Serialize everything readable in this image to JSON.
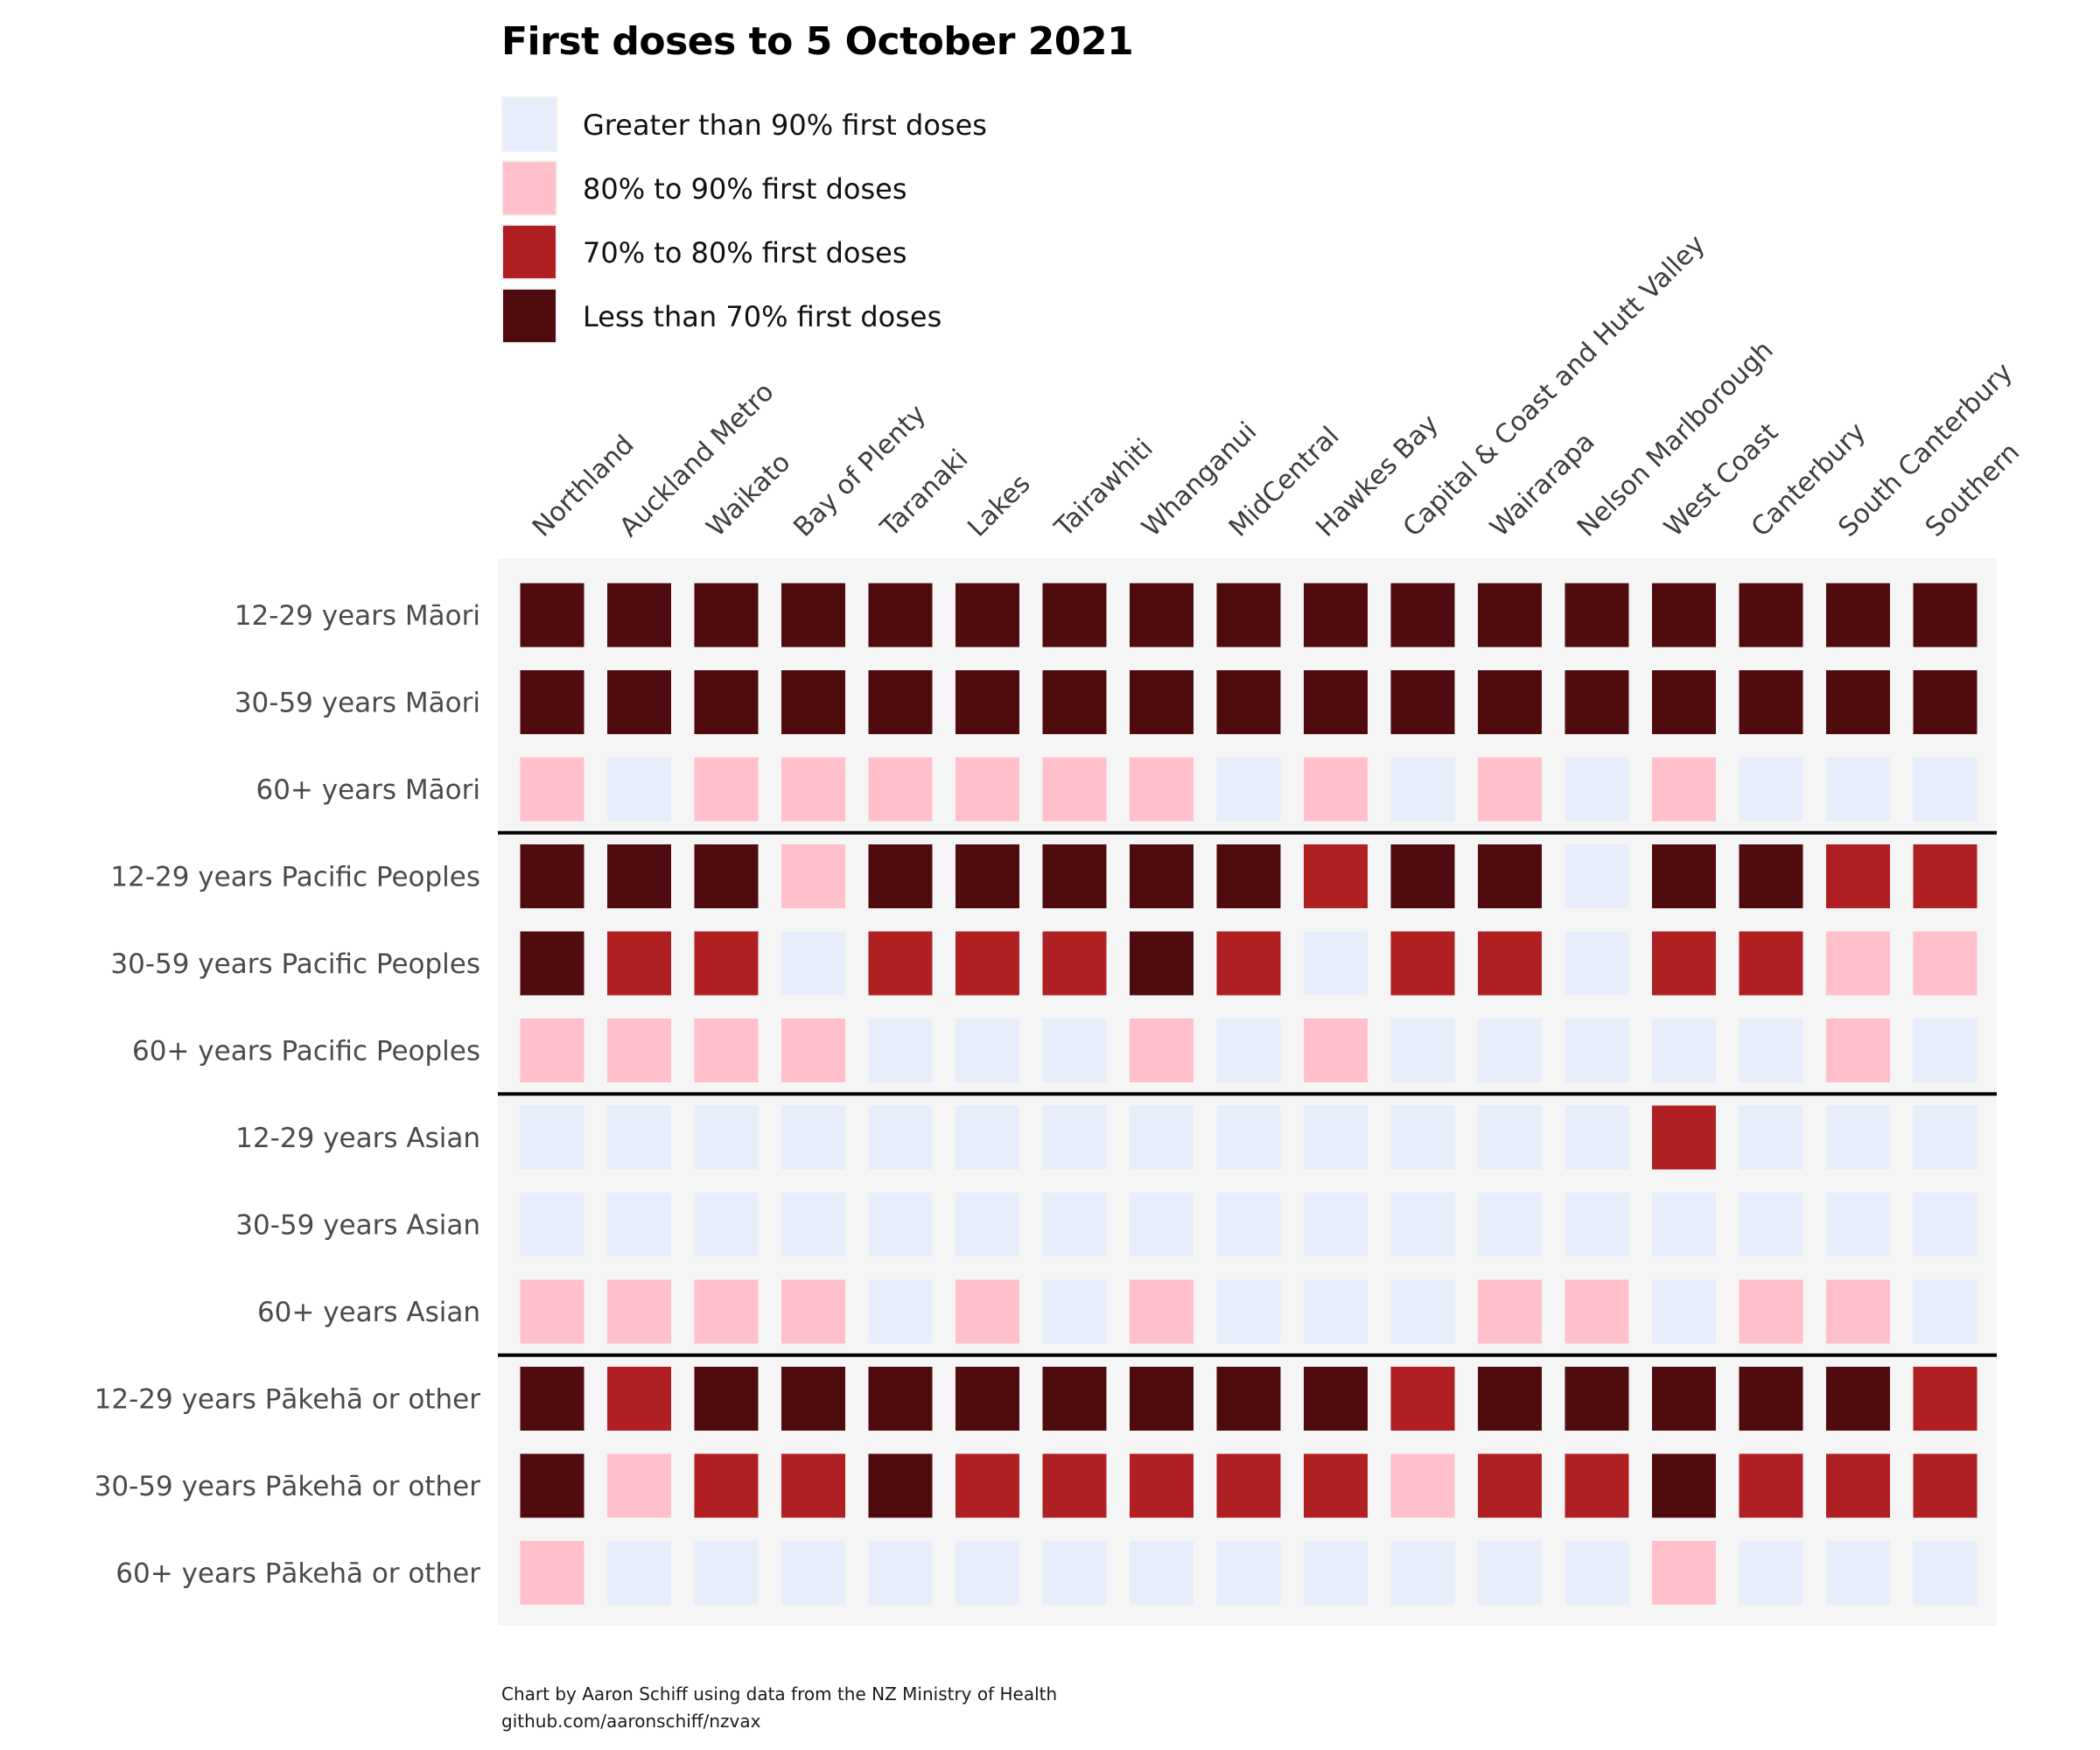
{
  "title": "First doses to 5 October 2021",
  "legend": [
    {
      "label": "Greater than 90% first doses",
      "color": "#e8edfc"
    },
    {
      "label": "80% to 90% first doses",
      "color": "#ffbfcb"
    },
    {
      "label": "70% to 80% first doses",
      "color": "#b01f22"
    },
    {
      "label": "Less than 70% first doses",
      "color": "#4f0b0d"
    }
  ],
  "caption": {
    "line1": "Chart by Aaron Schiff using data from the NZ Ministry of Health",
    "line2": "github.com/aaronschiff/nzvax"
  },
  "chart_data": {
    "type": "heatmap",
    "title": "First doses to 5 October 2021",
    "x": [
      "Northland",
      "Auckland Metro",
      "Waikato",
      "Bay of Plenty",
      "Taranaki",
      "Lakes",
      "Tairawhiti",
      "Whanganui",
      "MidCentral",
      "Hawkes Bay",
      "Capital & Coast and Hutt Valley",
      "Wairarapa",
      "Nelson Marlborough",
      "West Coast",
      "Canterbury",
      "South Canterbury",
      "Southern"
    ],
    "y": [
      "12-29 years Māori",
      "30-59 years Māori",
      "60+ years Māori",
      "12-29 years Pacific Peoples",
      "30-59 years Pacific Peoples",
      "60+ years Pacific Peoples",
      "12-29 years Asian",
      "30-59 years Asian",
      "60+ years Asian",
      "12-29 years Pākehā or other",
      "30-59 years Pākehā or other",
      "60+ years Pākehā or other"
    ],
    "categories": [
      "Greater than 90% first doses",
      "80% to 90% first doses",
      "70% to 80% first doses",
      "Less than 70% first doses"
    ],
    "values": [
      [
        3,
        3,
        3,
        3,
        3,
        3,
        3,
        3,
        3,
        3,
        3,
        3,
        3,
        3,
        3,
        3,
        3
      ],
      [
        3,
        3,
        3,
        3,
        3,
        3,
        3,
        3,
        3,
        3,
        3,
        3,
        3,
        3,
        3,
        3,
        3
      ],
      [
        1,
        0,
        1,
        1,
        1,
        1,
        1,
        1,
        0,
        1,
        0,
        1,
        0,
        1,
        0,
        0,
        0
      ],
      [
        3,
        3,
        3,
        1,
        3,
        3,
        3,
        3,
        3,
        2,
        3,
        3,
        0,
        3,
        3,
        2,
        2
      ],
      [
        3,
        2,
        2,
        0,
        2,
        2,
        2,
        3,
        2,
        0,
        2,
        2,
        0,
        2,
        2,
        1,
        1
      ],
      [
        1,
        1,
        1,
        1,
        0,
        0,
        0,
        1,
        0,
        1,
        0,
        0,
        0,
        0,
        0,
        1,
        0
      ],
      [
        0,
        0,
        0,
        0,
        0,
        0,
        0,
        0,
        0,
        0,
        0,
        0,
        0,
        2,
        0,
        0,
        0
      ],
      [
        0,
        0,
        0,
        0,
        0,
        0,
        0,
        0,
        0,
        0,
        0,
        0,
        0,
        0,
        0,
        0,
        0
      ],
      [
        1,
        1,
        1,
        1,
        0,
        1,
        0,
        1,
        0,
        0,
        0,
        1,
        1,
        0,
        1,
        1,
        0
      ],
      [
        3,
        2,
        3,
        3,
        3,
        3,
        3,
        3,
        3,
        3,
        2,
        3,
        3,
        3,
        3,
        3,
        2
      ],
      [
        3,
        1,
        2,
        2,
        3,
        2,
        2,
        2,
        2,
        2,
        1,
        2,
        2,
        3,
        2,
        2,
        2
      ],
      [
        1,
        0,
        0,
        0,
        0,
        0,
        0,
        0,
        0,
        0,
        0,
        0,
        0,
        1,
        0,
        0,
        0
      ]
    ],
    "group_separators_after_rows": [
      2,
      5,
      8
    ]
  }
}
